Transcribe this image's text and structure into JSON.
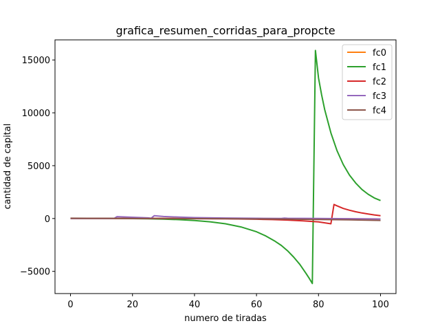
{
  "chart_data": {
    "type": "line",
    "title": "grafica_resumen_corridas_para_propcte",
    "xlabel": "numero de tiradas",
    "ylabel": "cantidad de capital",
    "xlim": [
      -5,
      105
    ],
    "ylim": [
      -7100,
      16900
    ],
    "xticks": [
      0,
      20,
      40,
      60,
      80,
      100
    ],
    "yticks": [
      -5000,
      0,
      5000,
      10000,
      15000
    ],
    "grid": false,
    "legend_position": "top-right",
    "series": [
      {
        "name": "fc0",
        "color": "#ff7f0e",
        "x": [
          0,
          10,
          20,
          30,
          40,
          50,
          60,
          70,
          80,
          90,
          100
        ],
        "y": [
          0,
          10,
          20,
          15,
          10,
          5,
          0,
          -10,
          -20,
          -30,
          -40
        ]
      },
      {
        "name": "fc1",
        "color": "#2ca02c",
        "x": [
          0,
          5,
          10,
          15,
          20,
          25,
          30,
          35,
          40,
          45,
          50,
          55,
          60,
          63,
          66,
          68,
          70,
          72,
          74,
          76,
          77,
          78,
          79,
          80,
          81,
          82,
          84,
          86,
          88,
          90,
          92,
          94,
          96,
          98,
          100
        ],
        "y": [
          0,
          0,
          0,
          0,
          -10,
          -30,
          -60,
          -110,
          -190,
          -310,
          -500,
          -800,
          -1250,
          -1650,
          -2150,
          -2550,
          -3050,
          -3650,
          -4350,
          -5200,
          -5650,
          -6150,
          15900,
          13300,
          11700,
          10300,
          8100,
          6400,
          5100,
          4100,
          3350,
          2750,
          2300,
          1950,
          1700
        ]
      },
      {
        "name": "fc2",
        "color": "#d62728",
        "x": [
          0,
          10,
          20,
          30,
          40,
          50,
          60,
          65,
          70,
          75,
          80,
          84,
          85,
          86,
          88,
          90,
          92,
          94,
          96,
          98,
          100
        ],
        "y": [
          0,
          0,
          0,
          -5,
          -15,
          -30,
          -70,
          -100,
          -150,
          -220,
          -320,
          -500,
          1330,
          1200,
          950,
          780,
          640,
          520,
          430,
          340,
          270
        ]
      },
      {
        "name": "fc3",
        "color": "#9467bd",
        "x": [
          0,
          10,
          14,
          15,
          20,
          25,
          26,
          27,
          30,
          35,
          40,
          50,
          60,
          68,
          69,
          70,
          80,
          90,
          100
        ],
        "y": [
          0,
          0,
          0,
          180,
          120,
          60,
          30,
          260,
          190,
          130,
          90,
          50,
          20,
          0,
          40,
          20,
          0,
          -20,
          -40
        ]
      },
      {
        "name": "fc4",
        "color": "#8c564b",
        "x": [
          0,
          10,
          20,
          30,
          40,
          50,
          60,
          70,
          80,
          90,
          100
        ],
        "y": [
          30,
          20,
          10,
          0,
          -10,
          -20,
          -40,
          -60,
          -90,
          -130,
          -180
        ]
      }
    ]
  }
}
